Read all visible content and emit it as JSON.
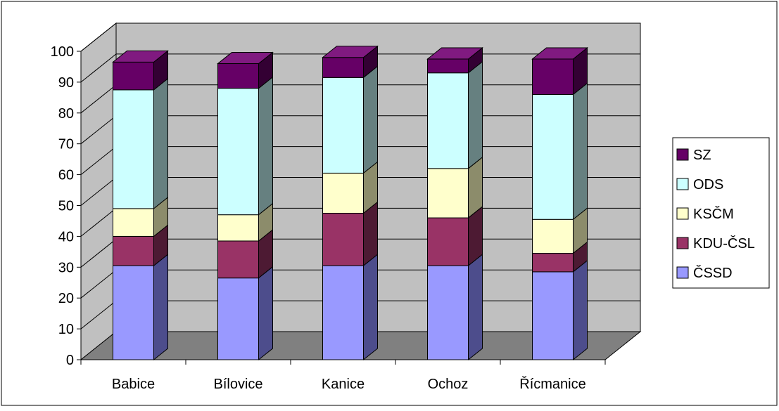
{
  "chart_data": {
    "type": "bar",
    "stacked": true,
    "three_d": true,
    "categories": [
      "Babice",
      "Bílovice",
      "Kanice",
      "Ochoz",
      "Řícmanice"
    ],
    "ylim": [
      0,
      100
    ],
    "yticks": [
      0,
      10,
      20,
      30,
      40,
      50,
      60,
      70,
      80,
      90,
      100
    ],
    "grid": true,
    "legend_position": "right",
    "series": [
      {
        "name": "ČSSD",
        "values": [
          30.5,
          26.5,
          30.5,
          30.5,
          28.5
        ]
      },
      {
        "name": "KDU-ČSL",
        "values": [
          9.5,
          12,
          17,
          15.5,
          6
        ]
      },
      {
        "name": "KSČM",
        "values": [
          9,
          8.5,
          13,
          16,
          11
        ]
      },
      {
        "name": "ODS",
        "values": [
          38.5,
          41,
          31,
          31,
          40.5
        ]
      },
      {
        "name": "SZ",
        "values": [
          9,
          8,
          6.5,
          4.5,
          11.5
        ]
      }
    ]
  },
  "colors": {
    "ČSSD": {
      "front": "#9999ff",
      "side": "#4d4d8c",
      "top": "#b3b3ff"
    },
    "KDU-ČSL": {
      "front": "#993366",
      "side": "#4d1a33",
      "top": "#b34d80"
    },
    "KSČM": {
      "front": "#ffffcc",
      "side": "#8c8c6b",
      "top": "#ffffe0"
    },
    "ODS": {
      "front": "#ccffff",
      "side": "#668080",
      "top": "#e0ffff"
    },
    "SZ": {
      "front": "#660066",
      "side": "#330033",
      "top": "#801a80"
    },
    "wall": "#c0c0c0",
    "floor": "#808080"
  }
}
